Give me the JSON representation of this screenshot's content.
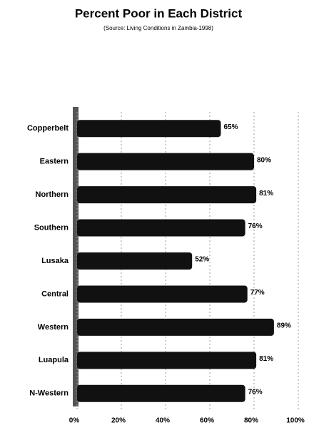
{
  "chart_data": {
    "type": "bar",
    "orientation": "horizontal",
    "title": "Percent Poor in Each District",
    "subtitle": "(Source: Living Conditions in Zambia-1998)",
    "categories": [
      "Copperbelt",
      "Eastern",
      "Northern",
      "Southern",
      "Lusaka",
      "Central",
      "Western",
      "Luapula",
      "N-Western"
    ],
    "values": [
      65,
      80,
      81,
      76,
      52,
      77,
      89,
      81,
      76
    ],
    "value_labels": [
      "65%",
      "80%",
      "81%",
      "76%",
      "52%",
      "77%",
      "89%",
      "81%",
      "76%"
    ],
    "color": "#111111",
    "xlim": [
      0,
      100
    ],
    "xticks": [
      {
        "value": 0,
        "label": "0%"
      },
      {
        "value": 20,
        "label": "20%"
      },
      {
        "value": 40,
        "label": "40%"
      },
      {
        "value": 60,
        "label": "60%"
      },
      {
        "value": 80,
        "label": "80%"
      },
      {
        "value": 100,
        "label": "100%"
      }
    ],
    "grid": true
  }
}
